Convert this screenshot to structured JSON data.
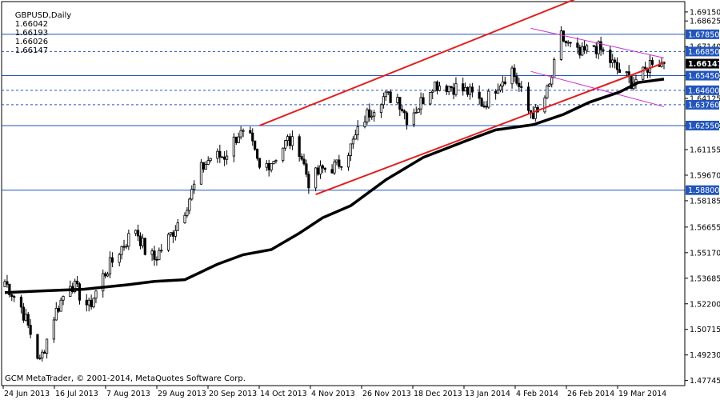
{
  "header": {
    "symbol": "GBPUSD,Daily",
    "ohlc": [
      "1.66042",
      "1.66193",
      "1.66026",
      "1.66147"
    ]
  },
  "footer": {
    "copyright": "GCM MetaTrader, © 2001-2014, MetaQuotes Software Corp."
  },
  "colors": {
    "up_candle": "#ffffff",
    "down_candle": "#000000",
    "moving_average": "#000000",
    "channel": "#e02020",
    "descending_channel": "#cc33cc",
    "horizontal_level": "#2255bb",
    "current_price_bg": "#000000"
  },
  "chart_data": {
    "type": "candlestick",
    "title": "GBPUSD,Daily",
    "ylim": [
      1.4745,
      1.6975
    ],
    "y_ticks": [
      "1.69150",
      "1.68625",
      "1.67140",
      "1.65450",
      "1.64125",
      "1.62550",
      "1.61155",
      "1.59670",
      "1.58185",
      "1.56655",
      "1.55170",
      "1.53685",
      "1.52200",
      "1.50715",
      "1.49230",
      "1.47745"
    ],
    "x_ticks": [
      "24 Jun 2013",
      "16 Jul 2013",
      "7 Aug 2013",
      "29 Aug 2013",
      "20 Sep 2013",
      "14 Oct 2013",
      "4 Nov 2013",
      "26 Nov 2013",
      "18 Dec 2013",
      "13 Jan 2014",
      "4 Feb 2014",
      "26 Feb 2014",
      "19 Mar 2014"
    ],
    "x_range": [
      "2013-06-24",
      "2014-04-02"
    ],
    "current_price": "1.66147",
    "horizontal_levels": [
      {
        "value": 1.6785,
        "label": "1.67850",
        "style": "solid"
      },
      {
        "value": 1.6685,
        "label": "1.66850",
        "style": "dashed"
      },
      {
        "value": 1.6545,
        "label": "1.65450",
        "style": "solid"
      },
      {
        "value": 1.646,
        "label": "1.64600",
        "style": "dashed"
      },
      {
        "value": 1.6376,
        "label": "1.63760",
        "style": "dashed"
      },
      {
        "value": 1.6255,
        "label": "1.62550",
        "style": "solid"
      },
      {
        "value": 1.588,
        "label": "1.58800",
        "style": "solid"
      }
    ],
    "trendlines": [
      {
        "name": "channel-upper",
        "color": "red",
        "from": [
          "2013-10-11",
          1.6255
        ],
        "to": [
          "2014-02-25",
          1.7
        ]
      },
      {
        "name": "channel-lower",
        "color": "red",
        "from": [
          "2013-11-04",
          1.5855
        ],
        "to": [
          "2014-04-02",
          1.662
        ]
      },
      {
        "name": "descending-upper",
        "color": "magenta",
        "from": [
          "2014-02-04",
          1.682
        ],
        "to": [
          "2014-04-02",
          1.6648
        ]
      },
      {
        "name": "descending-lower",
        "color": "magenta",
        "from": [
          "2014-02-04",
          1.657
        ],
        "to": [
          "2014-04-02",
          1.6365
        ]
      }
    ],
    "moving_average": [
      [
        "2013-06-24",
        1.5285
      ],
      [
        "2013-07-10",
        1.5295
      ],
      [
        "2013-07-28",
        1.5305
      ],
      [
        "2013-08-15",
        1.533
      ],
      [
        "2013-08-27",
        1.535
      ],
      [
        "2013-09-09",
        1.536
      ],
      [
        "2013-09-23",
        1.545
      ],
      [
        "2013-10-04",
        1.5505
      ],
      [
        "2013-10-16",
        1.5535
      ],
      [
        "2013-10-28",
        1.563
      ],
      [
        "2013-11-07",
        1.572
      ],
      [
        "2013-11-19",
        1.579
      ],
      [
        "2013-12-04",
        1.594
      ],
      [
        "2013-12-20",
        1.607
      ],
      [
        "2014-01-08",
        1.617
      ],
      [
        "2014-01-20",
        1.623
      ],
      [
        "2014-02-05",
        1.626
      ],
      [
        "2014-02-18",
        1.632
      ],
      [
        "2014-03-01",
        1.639
      ],
      [
        "2014-03-14",
        1.645
      ],
      [
        "2014-03-22",
        1.6505
      ],
      [
        "2014-04-02",
        1.6525
      ]
    ],
    "price_path": [
      [
        "2013-06-24",
        1.535
      ],
      [
        "2013-07-01",
        1.52
      ],
      [
        "2013-07-05",
        1.505
      ],
      [
        "2013-07-09",
        1.488
      ],
      [
        "2013-07-15",
        1.515
      ],
      [
        "2013-07-22",
        1.535
      ],
      [
        "2013-07-30",
        1.52
      ],
      [
        "2013-08-05",
        1.538
      ],
      [
        "2013-08-12",
        1.553
      ],
      [
        "2013-08-19",
        1.566
      ],
      [
        "2013-08-23",
        1.553
      ],
      [
        "2013-08-27",
        1.548
      ],
      [
        "2013-09-03",
        1.562
      ],
      [
        "2013-09-09",
        1.577
      ],
      [
        "2013-09-16",
        1.6
      ],
      [
        "2013-09-20",
        1.607
      ],
      [
        "2013-09-26",
        1.608
      ],
      [
        "2013-10-02",
        1.621
      ],
      [
        "2013-10-07",
        1.617
      ],
      [
        "2013-10-11",
        1.6
      ],
      [
        "2013-10-17",
        1.606
      ],
      [
        "2013-10-23",
        1.617
      ],
      [
        "2013-10-28",
        1.612
      ],
      [
        "2013-11-01",
        1.593
      ],
      [
        "2013-11-07",
        1.6
      ],
      [
        "2013-11-13",
        1.602
      ],
      [
        "2013-11-19",
        1.613
      ],
      [
        "2013-11-25",
        1.63
      ],
      [
        "2013-12-02",
        1.642
      ],
      [
        "2013-12-09",
        1.642
      ],
      [
        "2013-12-13",
        1.63
      ],
      [
        "2013-12-18",
        1.637
      ],
      [
        "2013-12-24",
        1.65
      ],
      [
        "2014-01-02",
        1.648
      ],
      [
        "2014-01-08",
        1.645
      ],
      [
        "2014-01-15",
        1.638
      ],
      [
        "2014-01-21",
        1.65
      ],
      [
        "2014-01-27",
        1.658
      ],
      [
        "2014-02-03",
        1.634
      ],
      [
        "2014-02-07",
        1.632
      ],
      [
        "2014-02-12",
        1.648
      ],
      [
        "2014-02-17",
        1.677
      ],
      [
        "2014-02-20",
        1.672
      ],
      [
        "2014-02-25",
        1.666
      ],
      [
        "2014-03-03",
        1.672
      ],
      [
        "2014-03-07",
        1.668
      ],
      [
        "2014-03-13",
        1.658
      ],
      [
        "2014-03-19",
        1.651
      ],
      [
        "2014-03-24",
        1.655
      ],
      [
        "2014-03-28",
        1.664
      ],
      [
        "2014-04-02",
        1.6615
      ]
    ]
  }
}
